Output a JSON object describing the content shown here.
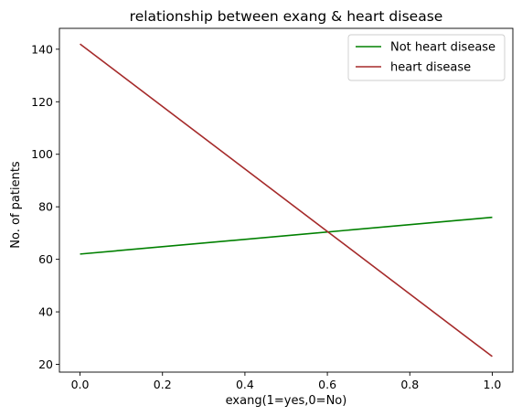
{
  "chart_data": {
    "type": "line",
    "title": "relationship between exang & heart disease",
    "xlabel": "exang(1=yes,0=No)",
    "ylabel": "No. of patients",
    "x": [
      0,
      1
    ],
    "series": [
      {
        "name": "Not heart disease",
        "values": [
          62,
          76
        ],
        "color": "#008000"
      },
      {
        "name": "heart disease",
        "values": [
          142,
          23
        ],
        "color": "#a52a2a"
      }
    ],
    "xticks": [
      0.0,
      0.2,
      0.4,
      0.6,
      0.8,
      1.0
    ],
    "xtick_labels": [
      "0.0",
      "0.2",
      "0.4",
      "0.6",
      "0.8",
      "1.0"
    ],
    "yticks": [
      20,
      40,
      60,
      80,
      100,
      120,
      140
    ],
    "ytick_labels": [
      "20",
      "40",
      "60",
      "80",
      "100",
      "120",
      "140"
    ],
    "xlim": [
      -0.05,
      1.05
    ],
    "ylim": [
      17.05,
      147.95
    ],
    "grid": false,
    "legend_position": "top-right"
  }
}
